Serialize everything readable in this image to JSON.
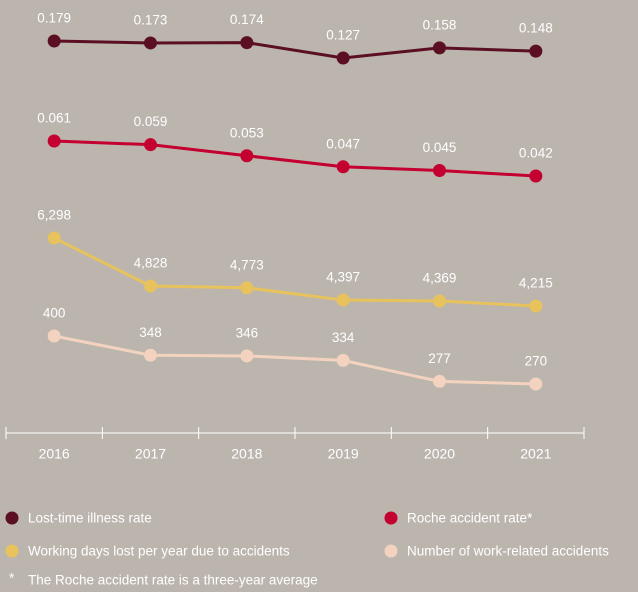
{
  "chart_data": {
    "type": "line",
    "categories": [
      "2016",
      "2017",
      "2018",
      "2019",
      "2020",
      "2021"
    ],
    "series": [
      {
        "name": "Lost-time illness rate",
        "color": "#5a0f22",
        "values": [
          0.179,
          0.173,
          0.174,
          0.127,
          0.158,
          0.148
        ]
      },
      {
        "name": "Roche accident rate*",
        "color": "#c3002f",
        "values": [
          0.061,
          0.059,
          0.053,
          0.047,
          0.045,
          0.042
        ]
      },
      {
        "name": "Working days lost per year due to accidents",
        "color": "#e8c25c",
        "values": [
          6298,
          4828,
          4773,
          4397,
          4369,
          4215
        ],
        "value_labels": [
          "6,298",
          "4,828",
          "4,773",
          "4,397",
          "4,369",
          "4,215"
        ]
      },
      {
        "name": "Number of work-related accidents",
        "color": "#f3d3bf",
        "values": [
          400,
          348,
          346,
          334,
          277,
          270
        ]
      }
    ],
    "footnote_marker": "*",
    "footnote": "The Roche accident rate is a three-year average"
  }
}
